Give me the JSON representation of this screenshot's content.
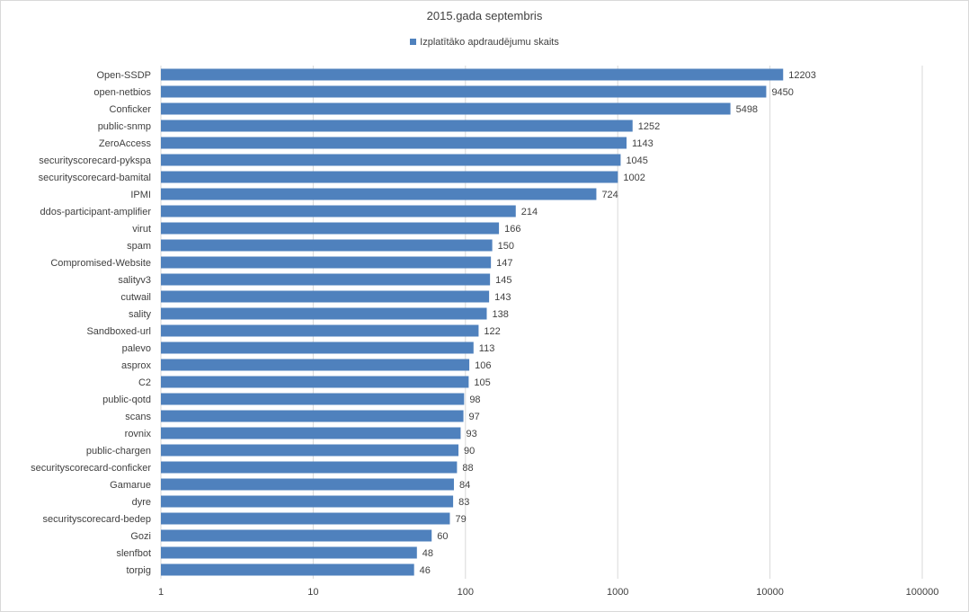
{
  "chart_data": {
    "type": "bar",
    "orientation": "horizontal",
    "title": "2015.gada septembris",
    "series": [
      {
        "name": "Izplatītāko apdraudējumu skaits",
        "color": "#4f81bd",
        "values": [
          12203,
          9450,
          5498,
          1252,
          1143,
          1045,
          1002,
          724,
          214,
          166,
          150,
          147,
          145,
          143,
          138,
          122,
          113,
          106,
          105,
          98,
          97,
          93,
          90,
          88,
          84,
          83,
          79,
          60,
          48,
          46
        ]
      }
    ],
    "categories": [
      "Open-SSDP",
      "open-netbios",
      "Conficker",
      "public-snmp",
      "ZeroAccess",
      "securityscorecard-pykspa",
      "securityscorecard-bamital",
      "IPMI",
      "ddos-participant-amplifier",
      "virut",
      "spam",
      "Compromised-Website",
      "salityv3",
      "cutwail",
      "sality",
      "Sandboxed-url",
      "palevo",
      "asprox",
      "C2",
      "public-qotd",
      "scans",
      "rovnix",
      "public-chargen",
      "securityscorecard-conficker",
      "Gamarue",
      "dyre",
      "securityscorecard-bedep",
      "Gozi",
      "slenfbot",
      "torpig"
    ],
    "xscale": "log",
    "xlim": [
      1,
      100000
    ],
    "xticks": [
      "1",
      "10",
      "100",
      "1000",
      "10000",
      "100000"
    ],
    "grid": true,
    "legend_position": "top"
  }
}
